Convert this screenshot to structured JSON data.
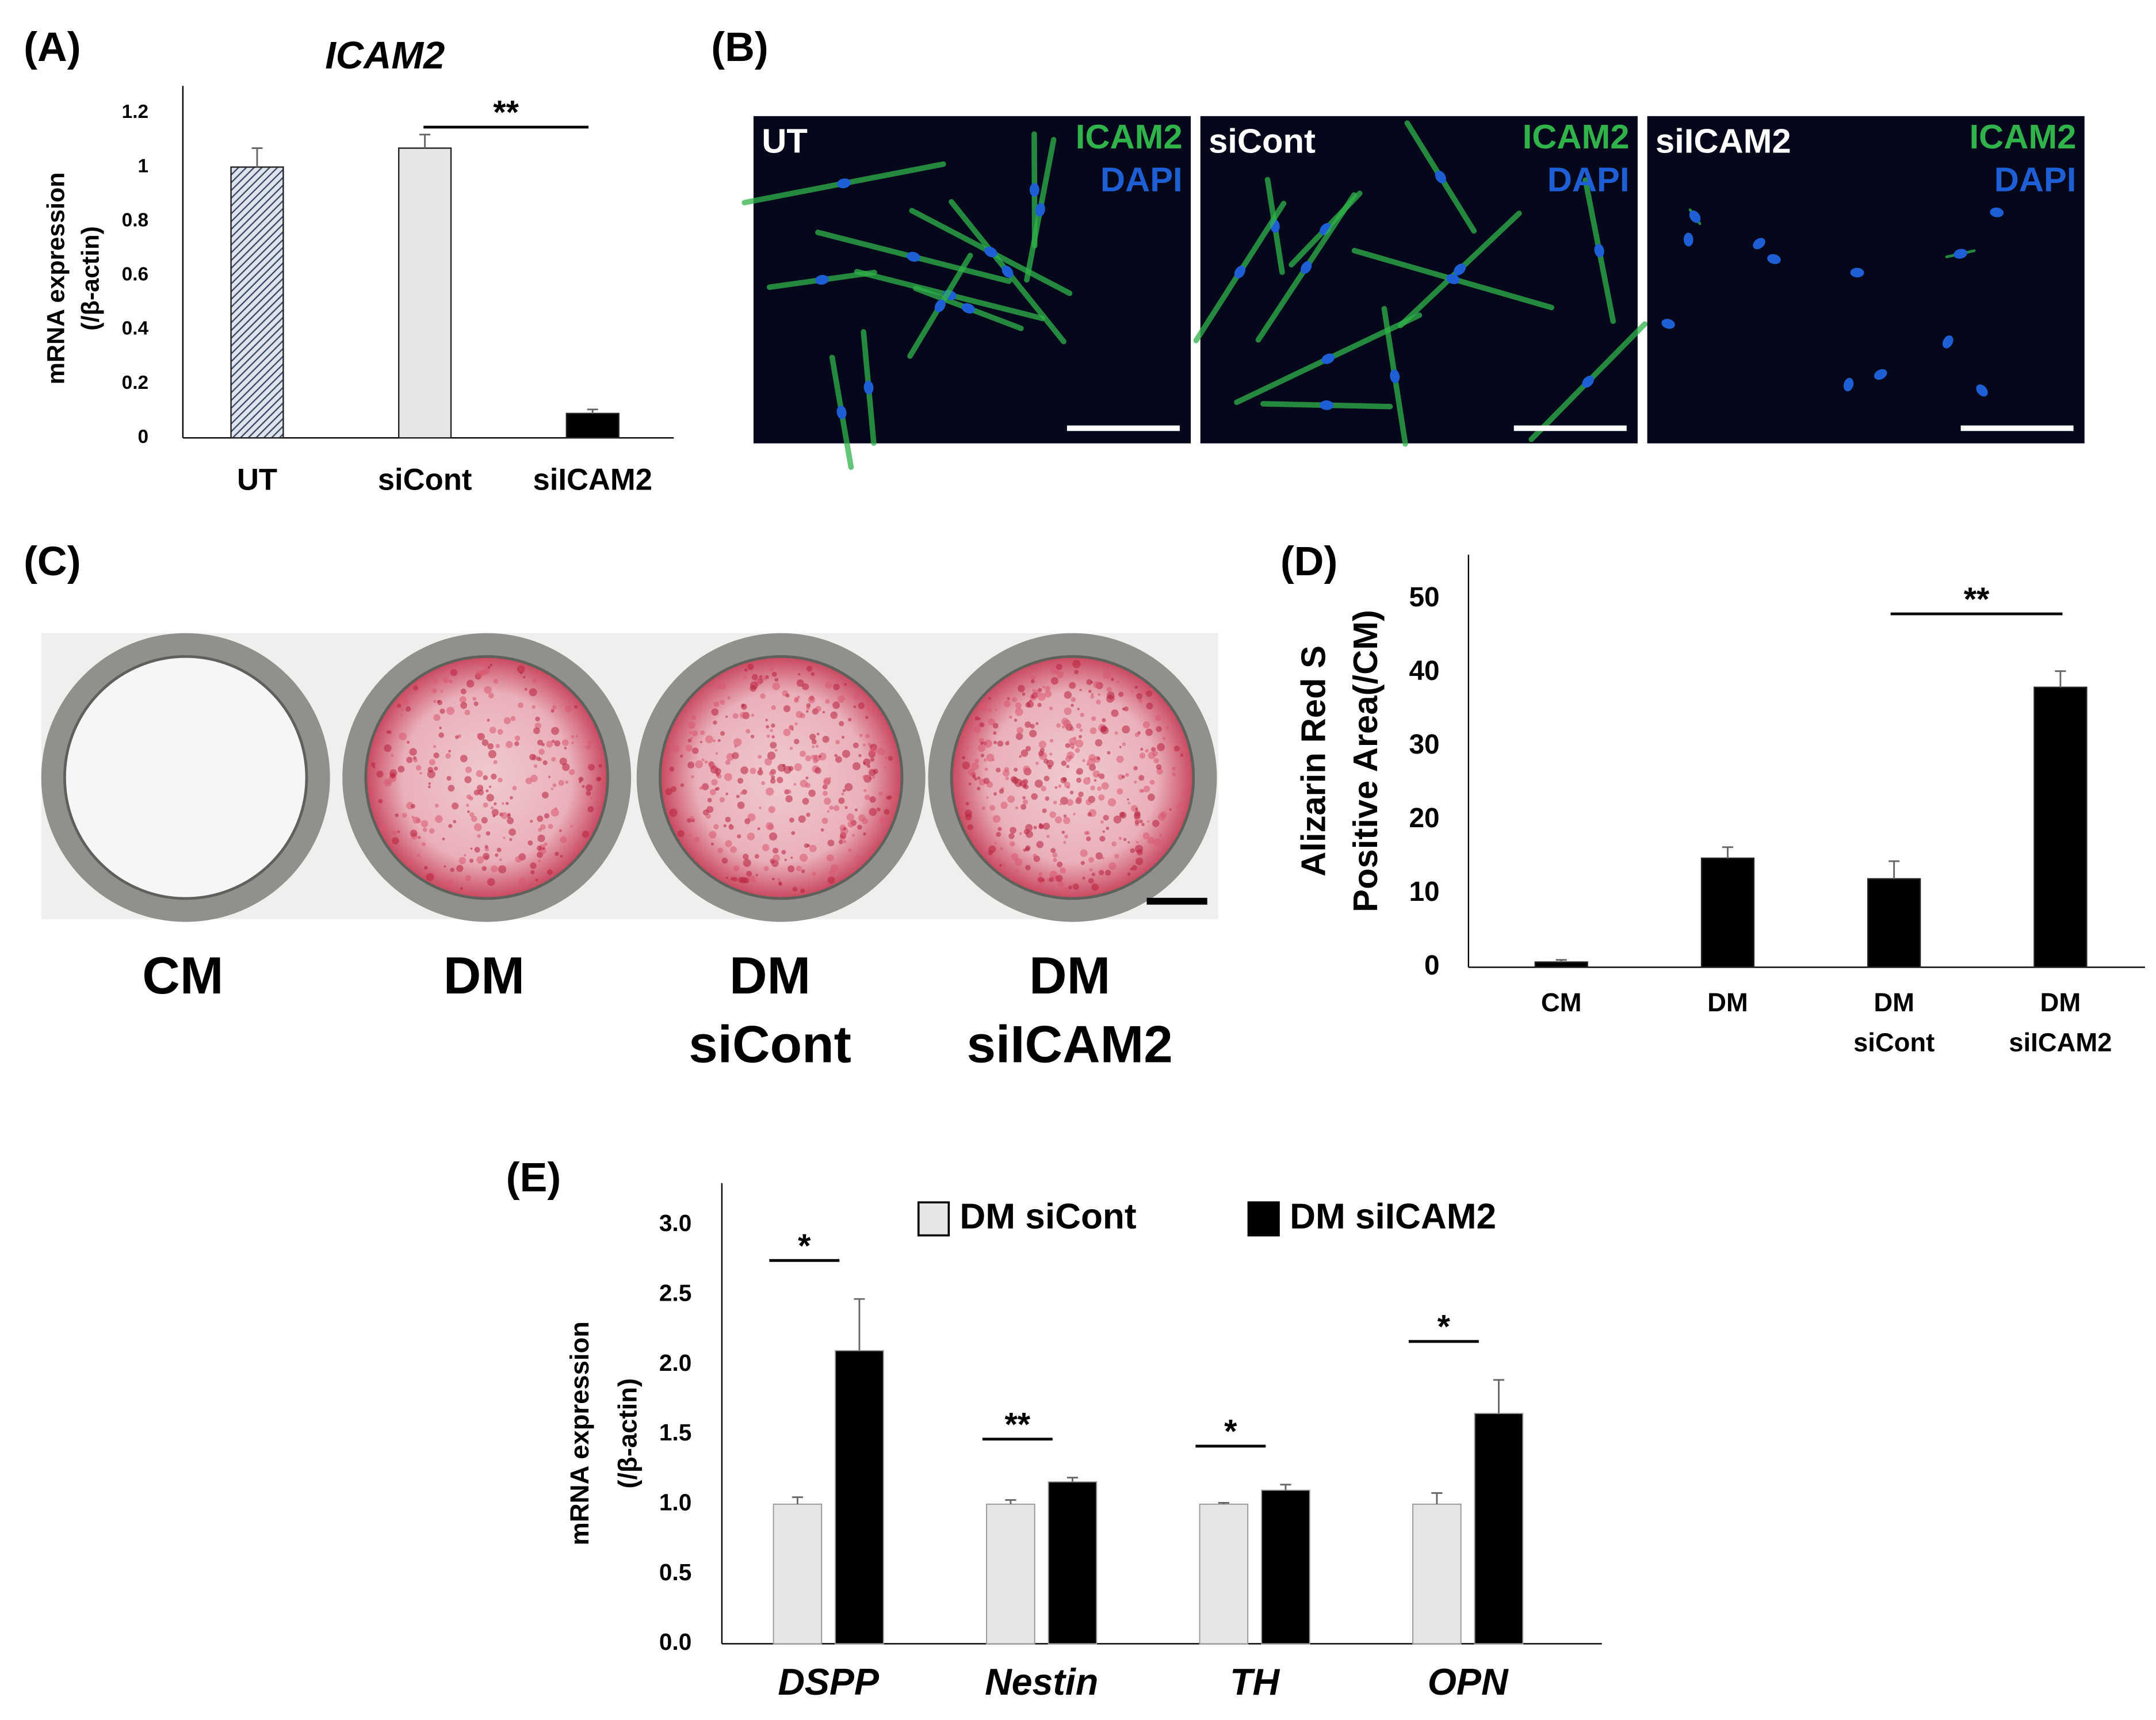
{
  "panel_labels": [
    "(A)",
    "(B)",
    "(C)",
    "(D)",
    "(E)"
  ],
  "chart_data": [
    {
      "type": "bar",
      "title": "ICAM2",
      "y_label": [
        "mRNA expression",
        "(/β-actin)"
      ],
      "categories": [
        [
          "UT"
        ],
        [
          "siCont"
        ],
        [
          "siICAM2"
        ]
      ],
      "values": [
        1.0,
        1.07,
        0.09
      ],
      "errors": [
        0.07,
        0.05,
        0.015
      ],
      "colors": [
        "#3c4a66",
        "#e6e6e6",
        "#000000"
      ],
      "hatch": [
        true,
        false,
        false
      ],
      "ylim": [
        0,
        1.3
      ],
      "yticks": [
        0,
        0.2,
        0.4,
        0.6,
        0.8,
        1,
        1.2
      ],
      "annotations": [
        "**"
      ]
    },
    {
      "type": "bar",
      "y_label": [
        "Alizarin Red S",
        "Positive Area(/CM)"
      ],
      "categories": [
        [
          "CM"
        ],
        [
          "DM"
        ],
        [
          "DM",
          "siCont"
        ],
        [
          "DM",
          "siICAM2"
        ]
      ],
      "values": [
        0.7,
        14.8,
        12.0,
        38.0
      ],
      "errors": [
        0.3,
        1.5,
        2.4,
        2.2
      ],
      "colors": [
        "#000000",
        "#000000",
        "#000000",
        "#000000"
      ],
      "hatch": [
        false,
        false,
        false,
        false
      ],
      "ylim": [
        0,
        56
      ],
      "yticks": [
        0,
        10,
        20,
        30,
        40,
        50
      ],
      "annotations": [
        "**"
      ]
    },
    {
      "type": "bar",
      "y_label": [
        "mRNA expression",
        "(/β-actin)"
      ],
      "categories": [
        [
          "DSPP"
        ],
        [
          "Nestin"
        ],
        [
          "TH"
        ],
        [
          "OPN"
        ]
      ],
      "series": [
        {
          "name": "DM siCont",
          "color": "#e6e6e6",
          "values": [
            1.0,
            1.0,
            1.0,
            1.0
          ],
          "errors": [
            0.05,
            0.03,
            0.01,
            0.08
          ]
        },
        {
          "name": "DM siICAM2",
          "color": "#000000",
          "values": [
            2.1,
            1.16,
            1.1,
            1.65
          ],
          "errors": [
            0.37,
            0.03,
            0.04,
            0.24
          ]
        }
      ],
      "ylim": [
        0,
        3.3
      ],
      "yticks": [
        {
          "value": 0,
          "label": "0.0"
        },
        0.5,
        {
          "value": 1,
          "label": "1.0"
        },
        1.5,
        {
          "value": 2,
          "label": "2.0"
        },
        2.5,
        {
          "value": 3,
          "label": "3.0"
        }
      ],
      "annotations": [
        "*",
        "**",
        "*",
        "*"
      ],
      "legend": "top"
    }
  ],
  "panel_b": {
    "images": [
      {
        "label": "UT",
        "stains": [
          "ICAM2",
          "DAPI"
        ]
      },
      {
        "label": "siCont",
        "stains": [
          "ICAM2",
          "DAPI"
        ]
      },
      {
        "label": "siICAM2",
        "stains": [
          "ICAM2",
          "DAPI"
        ]
      }
    ],
    "stain_colors": [
      "#2fb34a",
      "#1f5fd6"
    ]
  },
  "panel_c": {
    "wells": [
      [
        "CM"
      ],
      [
        "DM"
      ],
      [
        "DM",
        "siCont"
      ],
      [
        "DM",
        "siICAM2"
      ]
    ]
  }
}
